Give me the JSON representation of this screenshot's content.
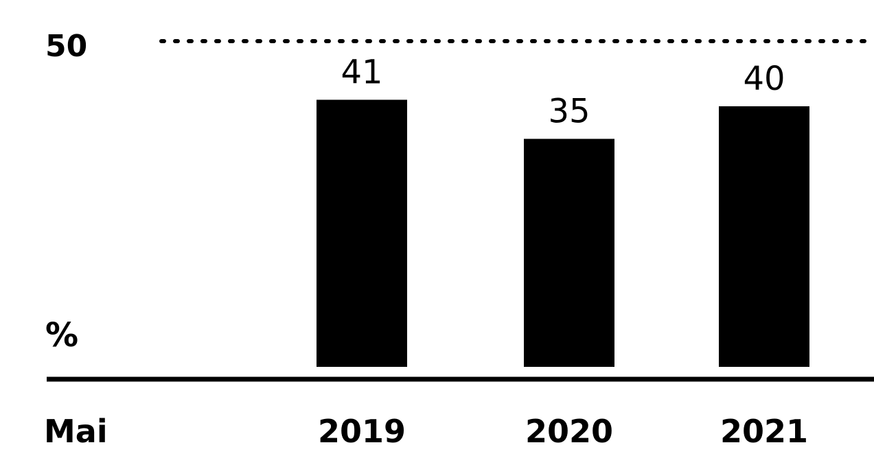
{
  "chart_data": {
    "type": "bar",
    "categories": [
      "2019",
      "2020",
      "2021"
    ],
    "values": [
      41,
      35,
      40
    ],
    "data_labels": [
      "41",
      "35",
      "40"
    ],
    "y_tick_label": "50",
    "y_unit_label": "%",
    "x_axis_label": "Mai",
    "ylim": [
      0,
      50
    ],
    "reference_line": {
      "value": 50,
      "style": "dotted"
    },
    "grid": false,
    "colors": {
      "bar": "#000000",
      "axis": "#000000",
      "background": "#ffffff"
    }
  }
}
